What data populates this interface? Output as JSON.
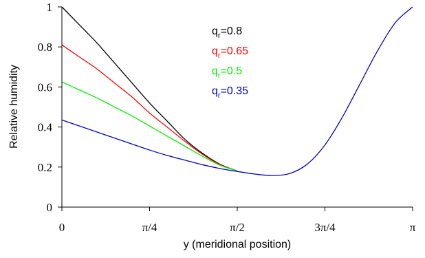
{
  "chart_data": {
    "type": "line",
    "title": "",
    "xlabel": "y (meridional position)",
    "ylabel": "Relative humidity",
    "xlim": [
      0,
      3.14159
    ],
    "ylim": [
      0,
      1
    ],
    "x_ticks": [
      {
        "value": 0,
        "label": "0"
      },
      {
        "value": 0.7854,
        "label": "π/4"
      },
      {
        "value": 1.5708,
        "label": "π/2"
      },
      {
        "value": 2.3562,
        "label": "3π/4"
      },
      {
        "value": 3.1416,
        "label": "π"
      }
    ],
    "y_ticks": [
      {
        "value": 0,
        "label": "0"
      },
      {
        "value": 0.2,
        "label": "0.2"
      },
      {
        "value": 0.4,
        "label": "0.4"
      },
      {
        "value": 0.6,
        "label": "0.6"
      },
      {
        "value": 0.8,
        "label": "0.8"
      },
      {
        "value": 1,
        "label": "1"
      }
    ],
    "grid": false,
    "legend_position": "top-center",
    "series": [
      {
        "name": "qr=0.8",
        "label_main": "q",
        "label_sub": "r",
        "label_value": "=0.8",
        "color": "#000000",
        "x": [
          0,
          0.157,
          0.314,
          0.471,
          0.628,
          0.785,
          0.942,
          1.099,
          1.256,
          1.413,
          1.571
        ],
        "y": [
          1.0,
          0.91,
          0.82,
          0.72,
          0.62,
          0.52,
          0.43,
          0.34,
          0.27,
          0.215,
          0.18
        ]
      },
      {
        "name": "qr=0.65",
        "label_main": "q",
        "label_sub": "r",
        "label_value": "=0.65",
        "color": "#ff0000",
        "x": [
          0,
          0.157,
          0.314,
          0.471,
          0.628,
          0.785,
          0.942,
          1.099,
          1.256,
          1.413,
          1.571
        ],
        "y": [
          0.81,
          0.75,
          0.69,
          0.62,
          0.55,
          0.47,
          0.4,
          0.33,
          0.265,
          0.213,
          0.18
        ]
      },
      {
        "name": "qr=0.5",
        "label_main": "q",
        "label_sub": "r",
        "label_value": "=0.5",
        "color": "#00ee00",
        "x": [
          0,
          0.157,
          0.314,
          0.471,
          0.628,
          0.785,
          0.942,
          1.099,
          1.256,
          1.413,
          1.571
        ],
        "y": [
          0.625,
          0.585,
          0.545,
          0.5,
          0.455,
          0.405,
          0.355,
          0.305,
          0.255,
          0.21,
          0.18
        ]
      },
      {
        "name": "qr=0.35",
        "label_main": "q",
        "label_sub": "r",
        "label_value": "=0.35",
        "color": "#0000cc",
        "x": [
          0,
          0.157,
          0.314,
          0.471,
          0.628,
          0.785,
          0.942,
          1.099,
          1.256,
          1.413,
          1.571,
          1.728,
          1.885,
          2.042,
          2.199,
          2.356,
          2.513,
          2.67,
          2.827,
          2.985,
          3.142
        ],
        "y": [
          0.435,
          0.405,
          0.375,
          0.345,
          0.315,
          0.285,
          0.258,
          0.235,
          0.212,
          0.193,
          0.178,
          0.165,
          0.158,
          0.168,
          0.215,
          0.31,
          0.45,
          0.615,
          0.78,
          0.92,
          1.0
        ]
      }
    ]
  }
}
